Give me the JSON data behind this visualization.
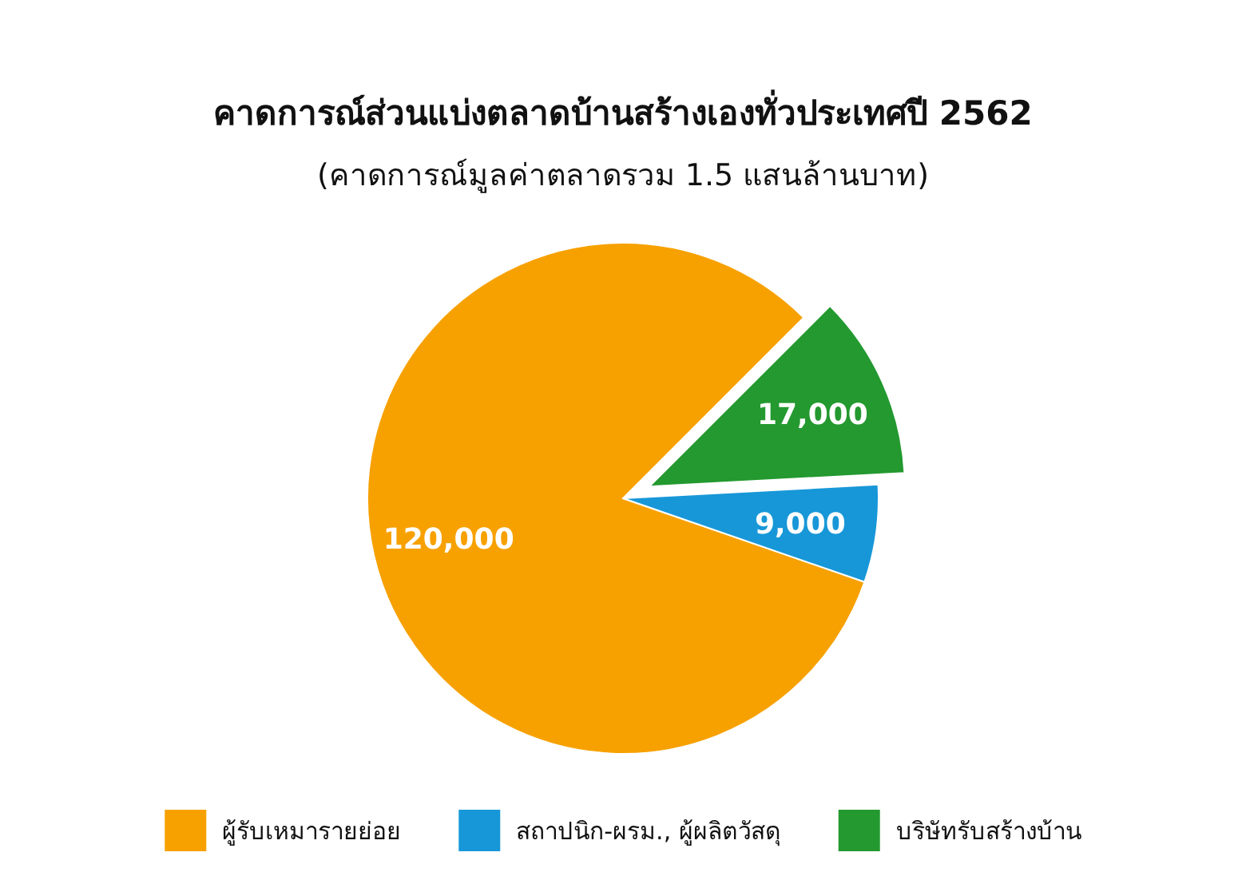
{
  "chart_data": {
    "type": "pie",
    "title": "คาดการณ์ส่วนแบ่งตลาดบ้านสร้างเองทั่วประเทศปี 2562",
    "subtitle": "(คาดการณ์มูลค่าตลาดรวม 1.5 แสนล้านบาท)",
    "categories": [
      "ผู้รับเหมารายย่อย",
      "สถาปนิก-ผรม., ผู้ผลิตวัสดุ",
      "บริษัทรับสร้างบ้าน"
    ],
    "values": [
      120000,
      9000,
      17000
    ],
    "value_labels": [
      "120,000",
      "9,000",
      "17,000"
    ],
    "colors": [
      "#f7a100",
      "#1797d8",
      "#23992f"
    ],
    "legend": "bottom"
  }
}
